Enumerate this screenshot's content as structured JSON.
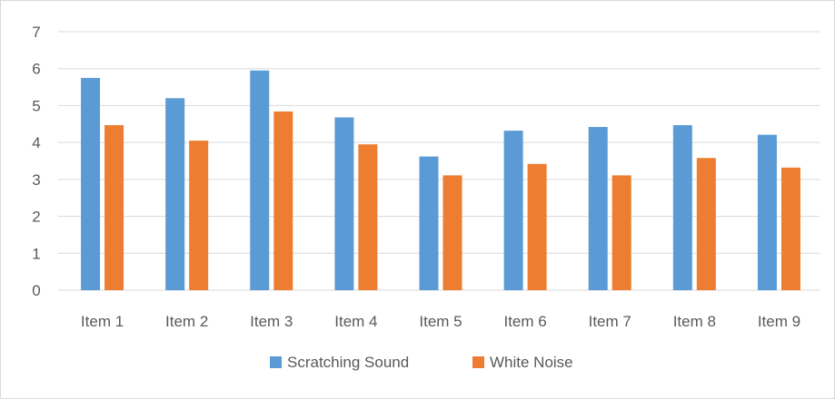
{
  "chart_data": {
    "type": "bar",
    "title": "",
    "xlabel": "",
    "ylabel": "",
    "categories": [
      "Item 1",
      "Item 2",
      "Item 3",
      "Item 4",
      "Item 5",
      "Item 6",
      "Item 7",
      "Item 8",
      "Item 9"
    ],
    "series": [
      {
        "name": "Scratching Sound",
        "color": "#5b9bd5",
        "values": [
          5.75,
          5.2,
          5.95,
          4.68,
          3.62,
          4.32,
          4.42,
          4.47,
          4.21
        ]
      },
      {
        "name": "White Noise",
        "color": "#ed7d31",
        "values": [
          4.47,
          4.05,
          4.84,
          3.95,
          3.11,
          3.42,
          3.11,
          3.58,
          3.32
        ]
      }
    ],
    "ylim": [
      0,
      7
    ],
    "yticks": [
      "0",
      "1",
      "2",
      "3",
      "4",
      "5",
      "6",
      "7"
    ],
    "grid": true,
    "gridColor": "#d9d9d9",
    "legend_position": "bottom"
  }
}
